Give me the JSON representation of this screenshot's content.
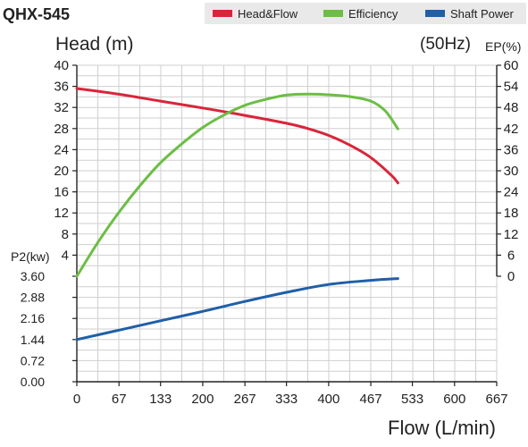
{
  "title": "QHX-545",
  "legend": [
    {
      "name": "Head&Flow",
      "color": "#d9253a"
    },
    {
      "name": "Efficiency",
      "color": "#6cbe45"
    },
    {
      "name": "Shaft Power",
      "color": "#1f5fa8"
    }
  ],
  "chart_data": {
    "type": "line",
    "title": "QHX-545",
    "subtitle": "(50Hz)",
    "xlabel": "Flow (L/min)",
    "ylabel_head": "Head (m)",
    "ylabel_ep": "EP(%)",
    "ylabel_p2": "P2(kw)",
    "x_ticks": [
      "0",
      "67",
      "133",
      "200",
      "267",
      "333",
      "400",
      "467",
      "533",
      "600",
      "667"
    ],
    "head_ticks": [
      "4",
      "8",
      "12",
      "16",
      "20",
      "24",
      "28",
      "32",
      "36",
      "40"
    ],
    "ep_ticks": [
      "0",
      "6",
      "12",
      "18",
      "24",
      "30",
      "36",
      "42",
      "48",
      "54",
      "60"
    ],
    "p2_ticks": [
      "0.00",
      "0.72",
      "1.44",
      "2.16",
      "2.88",
      "3.60"
    ],
    "xlim": [
      0,
      667
    ],
    "head_range": [
      0,
      40
    ],
    "ep_range": [
      0,
      60
    ],
    "p2_range": [
      0,
      3.6
    ],
    "grid": true,
    "legend_position": "top-right",
    "series": [
      {
        "name": "Head&Flow",
        "color": "#d9253a",
        "x": [
          0,
          67,
          133,
          200,
          267,
          333,
          367,
          400,
          433,
          467,
          500,
          510
        ],
        "y": [
          35.6,
          34.5,
          33.2,
          31.9,
          30.5,
          29.0,
          28.0,
          26.7,
          24.9,
          22.5,
          19.1,
          17.7
        ]
      },
      {
        "name": "Efficiency",
        "color": "#6cbe45",
        "x": [
          0,
          33,
          67,
          100,
          133,
          167,
          200,
          233,
          267,
          300,
          333,
          367,
          400,
          433,
          467,
          490,
          510
        ],
        "y": [
          0,
          9.5,
          18.2,
          25.7,
          32.3,
          37.7,
          42.3,
          45.8,
          48.6,
          50.3,
          51.5,
          51.8,
          51.6,
          51.1,
          49.8,
          47.0,
          41.9
        ]
      },
      {
        "name": "Shaft Power",
        "color": "#1f5fa8",
        "x": [
          0,
          67,
          133,
          200,
          267,
          333,
          400,
          467,
          510
        ],
        "y": [
          1.44,
          1.76,
          2.08,
          2.4,
          2.74,
          3.05,
          3.32,
          3.46,
          3.52
        ]
      }
    ]
  }
}
